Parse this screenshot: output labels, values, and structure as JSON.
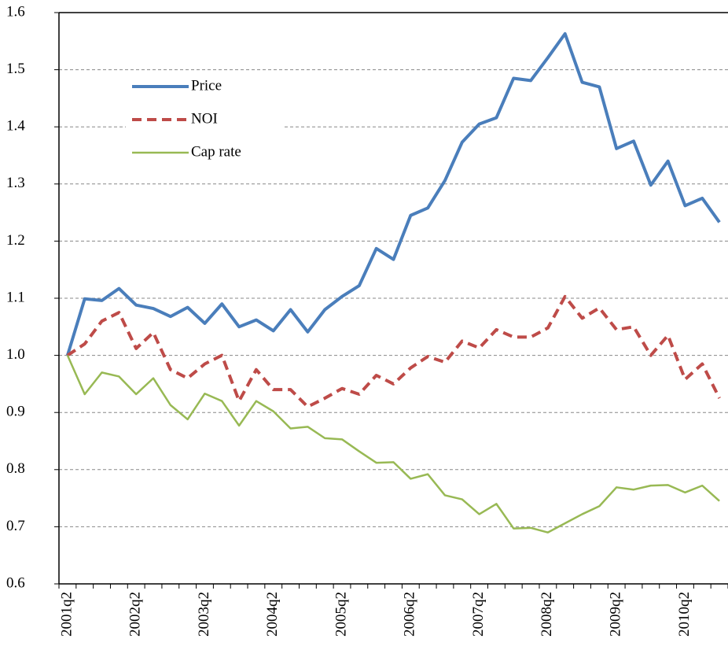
{
  "chart_data": {
    "type": "line",
    "categories": [
      "2001q2",
      null,
      null,
      null,
      "2002q2",
      null,
      null,
      null,
      "2003q2",
      null,
      null,
      null,
      "2004q2",
      null,
      null,
      null,
      "2005q2",
      null,
      null,
      null,
      "2006q2",
      null,
      null,
      null,
      "2007q2",
      null,
      null,
      null,
      "2008q2",
      null,
      null,
      null,
      "2009q2",
      null,
      null,
      null,
      "2010q2",
      null,
      null
    ],
    "series": [
      {
        "name": "Price",
        "color": "#4a7ebb",
        "dash": false,
        "width": 4,
        "values": [
          1.0,
          1.099,
          1.096,
          1.117,
          1.088,
          1.082,
          1.068,
          1.084,
          1.056,
          1.09,
          1.05,
          1.062,
          1.043,
          1.08,
          1.041,
          1.08,
          1.103,
          1.122,
          1.187,
          1.168,
          1.245,
          1.258,
          1.306,
          1.373,
          1.405,
          1.416,
          1.485,
          1.481,
          1.521,
          1.563,
          1.478,
          1.47,
          1.362,
          1.375,
          1.298,
          1.34,
          1.262,
          1.275,
          1.233
        ]
      },
      {
        "name": "NOI",
        "color": "#be4b48",
        "dash": true,
        "width": 4,
        "values": [
          1.0,
          1.02,
          1.06,
          1.075,
          1.012,
          1.04,
          0.975,
          0.96,
          0.985,
          1.0,
          0.92,
          0.975,
          0.94,
          0.94,
          0.91,
          0.925,
          0.942,
          0.932,
          0.965,
          0.95,
          0.978,
          0.998,
          0.988,
          1.025,
          1.013,
          1.045,
          1.032,
          1.032,
          1.048,
          1.103,
          1.065,
          1.083,
          1.045,
          1.05,
          1.0,
          1.035,
          0.958,
          0.985,
          0.925
        ]
      },
      {
        "name": "Cap rate",
        "color": "#98b954",
        "dash": false,
        "width": 2.5,
        "values": [
          1.0,
          0.932,
          0.97,
          0.963,
          0.932,
          0.96,
          0.913,
          0.888,
          0.933,
          0.92,
          0.877,
          0.92,
          0.902,
          0.872,
          0.875,
          0.855,
          0.853,
          0.832,
          0.812,
          0.813,
          0.784,
          0.792,
          0.755,
          0.748,
          0.722,
          0.74,
          0.697,
          0.698,
          0.69,
          0.706,
          0.722,
          0.736,
          0.769,
          0.765,
          0.772,
          0.773,
          0.76,
          0.772,
          0.745
        ]
      }
    ],
    "ylim": [
      0.6,
      1.6
    ],
    "yticks": [
      0.6,
      0.7,
      0.8,
      0.9,
      {
        "value": 1.0,
        "label": "1.0"
      },
      1.1,
      1.2,
      1.3,
      1.4,
      1.5,
      1.6
    ],
    "grid": true,
    "legend": "upper left"
  }
}
